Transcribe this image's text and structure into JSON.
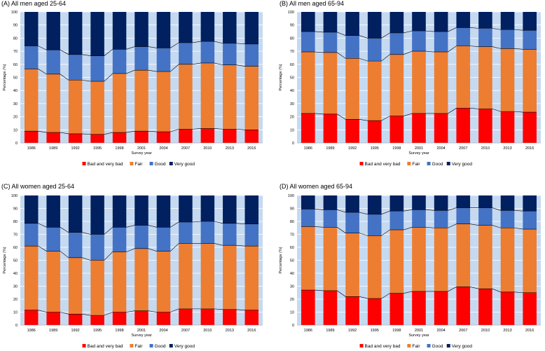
{
  "colors": {
    "plot_bg": "#c5d9f1",
    "grid": "#ffffff",
    "line": "#000000"
  },
  "chart_data": [
    {
      "type": "bar",
      "stacked": true,
      "title": "(A) All men aged 25-64",
      "xlabel": "Survey year",
      "ylabel": "Percentage (%)",
      "ylim": [
        0,
        100
      ],
      "yticks": [
        0,
        10,
        20,
        30,
        40,
        50,
        60,
        70,
        80,
        90,
        100
      ],
      "categories": [
        "1986",
        "1989",
        "1992",
        "1995",
        "1998",
        "2001",
        "2004",
        "2007",
        "2010",
        "2013",
        "2016"
      ],
      "legend_position": "bottom",
      "series": [
        {
          "name": "Bad and very bad",
          "color": "#ff0000",
          "values": [
            9,
            8,
            7,
            6.5,
            8,
            9,
            8.5,
            10.5,
            11,
            10.5,
            10
          ]
        },
        {
          "name": "Fair",
          "color": "#ed7d31",
          "values": [
            47.5,
            44.5,
            41,
            40.5,
            45,
            46.5,
            46,
            49.5,
            50,
            49,
            48.5
          ]
        },
        {
          "name": "Good",
          "color": "#4472c4",
          "values": [
            17.5,
            18.5,
            19.5,
            19.5,
            18.5,
            18,
            18,
            16.5,
            16.5,
            16.5,
            17
          ]
        },
        {
          "name": "Very good",
          "color": "#002060",
          "values": [
            26,
            29,
            32.5,
            33.5,
            28.5,
            26.5,
            27.5,
            23.5,
            22.5,
            24,
            24.5
          ]
        }
      ]
    },
    {
      "type": "bar",
      "stacked": true,
      "title": "(B) All men aged 65-94",
      "xlabel": "Survey year",
      "ylabel": "Percentage (%)",
      "ylim": [
        0,
        100
      ],
      "yticks": [
        0,
        10,
        20,
        30,
        40,
        50,
        60,
        70,
        80,
        90,
        100
      ],
      "categories": [
        "1986",
        "1989",
        "1992",
        "1995",
        "1998",
        "2001",
        "2004",
        "2007",
        "2010",
        "2013",
        "2016"
      ],
      "legend_position": "bottom",
      "series": [
        {
          "name": "Bad and very bad",
          "color": "#ff0000",
          "values": [
            22.5,
            22,
            18,
            17,
            20.5,
            22.5,
            22.5,
            26.5,
            26,
            24,
            23.5
          ]
        },
        {
          "name": "Fair",
          "color": "#ed7d31",
          "values": [
            47,
            47,
            46.5,
            45.5,
            47,
            47.5,
            47,
            47.5,
            47.5,
            48,
            48
          ]
        },
        {
          "name": "Good",
          "color": "#4472c4",
          "values": [
            15.5,
            15.5,
            17.5,
            17.5,
            16.5,
            15.5,
            15.5,
            14,
            14,
            14.5,
            14.5
          ]
        },
        {
          "name": "Very good",
          "color": "#002060",
          "values": [
            15,
            15.5,
            18,
            20,
            16,
            14.5,
            15,
            12,
            12.5,
            13.5,
            14
          ]
        }
      ]
    },
    {
      "type": "bar",
      "stacked": true,
      "title": "(C) All women aged 25-64",
      "xlabel": "Survey year",
      "ylabel": "Percentage (%)",
      "ylim": [
        0,
        100
      ],
      "yticks": [
        0,
        10,
        20,
        30,
        40,
        50,
        60,
        70,
        80,
        90,
        100
      ],
      "categories": [
        "1986",
        "1989",
        "1992",
        "1995",
        "1998",
        "2001",
        "2004",
        "2007",
        "2010",
        "2013",
        "2016"
      ],
      "legend_position": "bottom",
      "series": [
        {
          "name": "Bad and very bad",
          "color": "#ff0000",
          "values": [
            11.5,
            10,
            8.5,
            7.5,
            10,
            11,
            10,
            12.5,
            12.5,
            12,
            11.5
          ]
        },
        {
          "name": "Fair",
          "color": "#ed7d31",
          "values": [
            49.5,
            47,
            43.5,
            42.5,
            46.5,
            48,
            47,
            50.5,
            50.5,
            49.5,
            49.5
          ]
        },
        {
          "name": "Good",
          "color": "#4472c4",
          "values": [
            17.5,
            18.5,
            19.5,
            20,
            19,
            18,
            18.5,
            16.5,
            17,
            17,
            17
          ]
        },
        {
          "name": "Very good",
          "color": "#002060",
          "values": [
            21.5,
            24.5,
            28.5,
            30,
            24.5,
            23,
            24.5,
            20.5,
            20,
            21.5,
            22
          ]
        }
      ]
    },
    {
      "type": "bar",
      "stacked": true,
      "title": "(D) All women aged 65-94",
      "xlabel": "Survey year",
      "ylabel": "Percentage (%)",
      "ylim": [
        0,
        100
      ],
      "yticks": [
        0,
        10,
        20,
        30,
        40,
        50,
        60,
        70,
        80,
        90,
        100
      ],
      "categories": [
        "1986",
        "1989",
        "1992",
        "1995",
        "1998",
        "2001",
        "2004",
        "2007",
        "2010",
        "2013",
        "2016"
      ],
      "legend_position": "bottom",
      "series": [
        {
          "name": "Bad and very bad",
          "color": "#ff0000",
          "values": [
            27,
            26.5,
            22,
            20.5,
            24.5,
            26,
            26,
            29.5,
            28,
            25.5,
            25
          ]
        },
        {
          "name": "Fair",
          "color": "#ed7d31",
          "values": [
            49,
            49,
            49,
            48.5,
            49,
            49.5,
            49,
            48.5,
            49,
            49.5,
            49
          ]
        },
        {
          "name": "Good",
          "color": "#4472c4",
          "values": [
            13.5,
            13.5,
            16,
            16.5,
            14.5,
            13.5,
            13.5,
            12.5,
            13.5,
            13.5,
            14
          ]
        },
        {
          "name": "Very good",
          "color": "#002060",
          "values": [
            10.5,
            11,
            13,
            14.5,
            12,
            11,
            11.5,
            9.5,
            9.5,
            11.5,
            12
          ]
        }
      ]
    }
  ]
}
